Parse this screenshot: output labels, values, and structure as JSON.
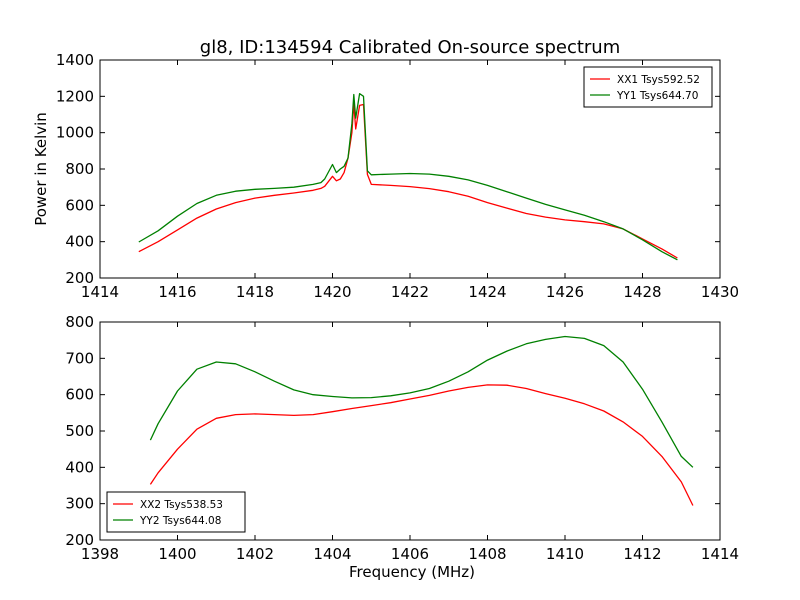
{
  "figure": {
    "title": "gl8, ID:134594 Calibrated On-source spectrum",
    "xlabel": "Frequency (MHz)",
    "ylabel": "Power in Kelvin"
  },
  "chart_data": [
    {
      "type": "line",
      "title": "gl8, ID:134594 Calibrated On-source spectrum",
      "xlabel": "",
      "ylabel": "Power in Kelvin",
      "xlim": [
        1414,
        1430
      ],
      "ylim": [
        200,
        1400
      ],
      "xticks": [
        1414,
        1416,
        1418,
        1420,
        1422,
        1424,
        1426,
        1428,
        1430
      ],
      "yticks": [
        200,
        400,
        600,
        800,
        1000,
        1200,
        1400
      ],
      "grid": false,
      "legend": "top-right",
      "series": [
        {
          "name": "XX1 Tsys592.52",
          "color": "#ff0000",
          "points": [
            [
              1415.0,
              345
            ],
            [
              1415.5,
              400
            ],
            [
              1416.0,
              465
            ],
            [
              1416.5,
              530
            ],
            [
              1417.0,
              580
            ],
            [
              1417.5,
              615
            ],
            [
              1418.0,
              640
            ],
            [
              1418.5,
              655
            ],
            [
              1419.0,
              668
            ],
            [
              1419.5,
              683
            ],
            [
              1419.7,
              693
            ],
            [
              1419.8,
              705
            ],
            [
              1420.0,
              760
            ],
            [
              1420.1,
              735
            ],
            [
              1420.2,
              745
            ],
            [
              1420.3,
              780
            ],
            [
              1420.4,
              860
            ],
            [
              1420.5,
              1000
            ],
            [
              1420.55,
              1160
            ],
            [
              1420.6,
              1020
            ],
            [
              1420.7,
              1150
            ],
            [
              1420.8,
              1155
            ],
            [
              1420.9,
              770
            ],
            [
              1421.0,
              715
            ],
            [
              1421.5,
              710
            ],
            [
              1422.0,
              703
            ],
            [
              1422.5,
              692
            ],
            [
              1423.0,
              675
            ],
            [
              1423.5,
              650
            ],
            [
              1424.0,
              615
            ],
            [
              1424.5,
              585
            ],
            [
              1425.0,
              555
            ],
            [
              1425.5,
              535
            ],
            [
              1426.0,
              520
            ],
            [
              1426.5,
              510
            ],
            [
              1427.0,
              498
            ],
            [
              1427.5,
              470
            ],
            [
              1428.0,
              415
            ],
            [
              1428.5,
              360
            ],
            [
              1428.9,
              310
            ]
          ]
        },
        {
          "name": "YY1 Tsys644.70",
          "color": "#008000",
          "points": [
            [
              1415.0,
              398
            ],
            [
              1415.5,
              460
            ],
            [
              1416.0,
              540
            ],
            [
              1416.5,
              610
            ],
            [
              1417.0,
              655
            ],
            [
              1417.5,
              678
            ],
            [
              1418.0,
              688
            ],
            [
              1418.5,
              693
            ],
            [
              1419.0,
              700
            ],
            [
              1419.5,
              715
            ],
            [
              1419.7,
              725
            ],
            [
              1419.8,
              745
            ],
            [
              1420.0,
              825
            ],
            [
              1420.1,
              780
            ],
            [
              1420.2,
              800
            ],
            [
              1420.3,
              815
            ],
            [
              1420.4,
              860
            ],
            [
              1420.5,
              1050
            ],
            [
              1420.55,
              1210
            ],
            [
              1420.6,
              1080
            ],
            [
              1420.7,
              1215
            ],
            [
              1420.8,
              1200
            ],
            [
              1420.9,
              790
            ],
            [
              1421.0,
              768
            ],
            [
              1421.5,
              772
            ],
            [
              1422.0,
              775
            ],
            [
              1422.5,
              772
            ],
            [
              1423.0,
              760
            ],
            [
              1423.5,
              740
            ],
            [
              1424.0,
              710
            ],
            [
              1424.5,
              675
            ],
            [
              1425.0,
              640
            ],
            [
              1425.5,
              605
            ],
            [
              1426.0,
              575
            ],
            [
              1426.5,
              545
            ],
            [
              1427.0,
              510
            ],
            [
              1427.5,
              470
            ],
            [
              1428.0,
              410
            ],
            [
              1428.5,
              345
            ],
            [
              1428.9,
              300
            ]
          ]
        }
      ]
    },
    {
      "type": "line",
      "title": "",
      "xlabel": "Frequency (MHz)",
      "ylabel": "",
      "xlim": [
        1398,
        1414
      ],
      "ylim": [
        200,
        800
      ],
      "xticks": [
        1398,
        1400,
        1402,
        1404,
        1406,
        1408,
        1410,
        1412,
        1414
      ],
      "yticks": [
        200,
        300,
        400,
        500,
        600,
        700,
        800
      ],
      "grid": false,
      "legend": "bottom-left",
      "series": [
        {
          "name": "XX2 Tsys538.53",
          "color": "#ff0000",
          "points": [
            [
              1399.3,
              353
            ],
            [
              1399.5,
              385
            ],
            [
              1400.0,
              450
            ],
            [
              1400.5,
              505
            ],
            [
              1401.0,
              535
            ],
            [
              1401.5,
              545
            ],
            [
              1402.0,
              547
            ],
            [
              1402.5,
              545
            ],
            [
              1403.0,
              543
            ],
            [
              1403.5,
              545
            ],
            [
              1404.0,
              553
            ],
            [
              1404.5,
              562
            ],
            [
              1405.0,
              570
            ],
            [
              1405.5,
              578
            ],
            [
              1406.0,
              588
            ],
            [
              1406.5,
              598
            ],
            [
              1407.0,
              610
            ],
            [
              1407.5,
              620
            ],
            [
              1408.0,
              627
            ],
            [
              1408.5,
              626
            ],
            [
              1409.0,
              617
            ],
            [
              1409.5,
              603
            ],
            [
              1410.0,
              590
            ],
            [
              1410.5,
              575
            ],
            [
              1411.0,
              555
            ],
            [
              1411.5,
              525
            ],
            [
              1412.0,
              485
            ],
            [
              1412.5,
              430
            ],
            [
              1413.0,
              360
            ],
            [
              1413.3,
              295
            ]
          ]
        },
        {
          "name": "YY2 Tsys644.08",
          "color": "#008000",
          "points": [
            [
              1399.3,
              475
            ],
            [
              1399.5,
              520
            ],
            [
              1400.0,
              610
            ],
            [
              1400.5,
              670
            ],
            [
              1401.0,
              690
            ],
            [
              1401.5,
              685
            ],
            [
              1402.0,
              663
            ],
            [
              1402.5,
              637
            ],
            [
              1403.0,
              613
            ],
            [
              1403.5,
              600
            ],
            [
              1404.0,
              595
            ],
            [
              1404.5,
              591
            ],
            [
              1405.0,
              592
            ],
            [
              1405.5,
              597
            ],
            [
              1406.0,
              605
            ],
            [
              1406.5,
              617
            ],
            [
              1407.0,
              637
            ],
            [
              1407.5,
              663
            ],
            [
              1408.0,
              695
            ],
            [
              1408.5,
              720
            ],
            [
              1409.0,
              740
            ],
            [
              1409.5,
              752
            ],
            [
              1410.0,
              760
            ],
            [
              1410.5,
              755
            ],
            [
              1411.0,
              735
            ],
            [
              1411.5,
              690
            ],
            [
              1412.0,
              615
            ],
            [
              1412.5,
              525
            ],
            [
              1413.0,
              430
            ],
            [
              1413.3,
              400
            ]
          ]
        }
      ]
    }
  ]
}
